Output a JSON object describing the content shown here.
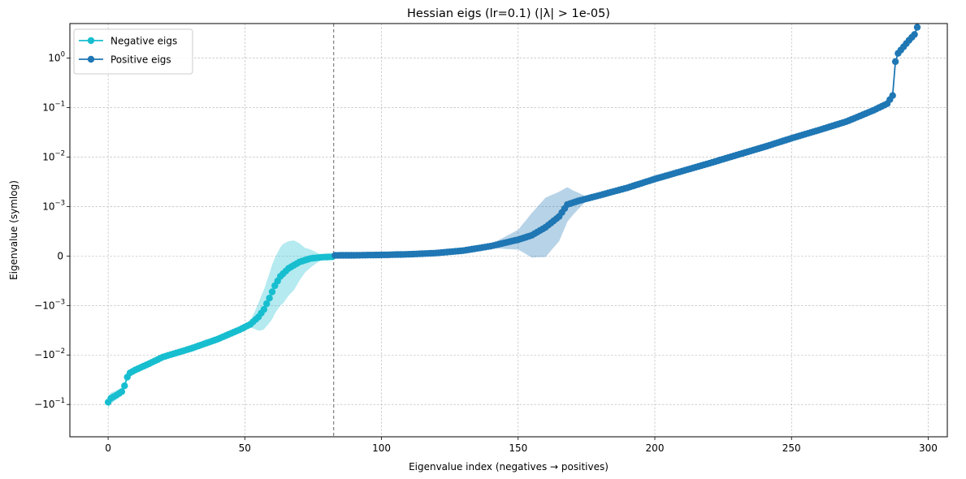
{
  "chart_data": {
    "type": "line",
    "title": "Hessian eigs (lr=0.1) (|λ| > 1e-05)",
    "xlabel": "Eigenvalue index (negatives → positives)",
    "ylabel": "Eigenvalue (symlog)",
    "y_scale": "symlog",
    "linthresh": 0.001,
    "xlim": [
      -14,
      307
    ],
    "ylim": [
      -0.45,
      5.0
    ],
    "xticks": [
      0,
      50,
      100,
      150,
      200,
      250,
      300
    ],
    "xtick_labels": [
      "0",
      "50",
      "100",
      "150",
      "200",
      "250",
      "300"
    ],
    "yticks": [
      -0.1,
      -0.01,
      -0.001,
      0,
      0.001,
      0.01,
      0.1,
      1
    ],
    "ytick_labels": [
      {
        "base": "−10",
        "exp": "−1"
      },
      {
        "base": "−10",
        "exp": "−2"
      },
      {
        "base": "−10",
        "exp": "−3"
      },
      {
        "base": "0",
        "exp": ""
      },
      {
        "base": "10",
        "exp": "−3"
      },
      {
        "base": "10",
        "exp": "−2"
      },
      {
        "base": "10",
        "exp": "−1"
      },
      {
        "base": "10",
        "exp": "0"
      }
    ],
    "grid": true,
    "legend_position": "upper-left",
    "divider_x": 82.5,
    "series": [
      {
        "name": "Negative eigs",
        "color": "#17becf",
        "x_start": 0,
        "x_end": 82,
        "anchors": [
          [
            0,
            -0.09
          ],
          [
            1,
            -0.075
          ],
          [
            3,
            -0.065
          ],
          [
            5,
            -0.055
          ],
          [
            6,
            -0.042
          ],
          [
            7,
            -0.028
          ],
          [
            8,
            -0.023
          ],
          [
            10,
            -0.02
          ],
          [
            15,
            -0.015
          ],
          [
            20,
            -0.011
          ],
          [
            30,
            -0.0075
          ],
          [
            40,
            -0.0048
          ],
          [
            48,
            -0.0031
          ],
          [
            52,
            -0.0024
          ],
          [
            55,
            -0.0017
          ],
          [
            57,
            -0.0012
          ],
          [
            59,
            -0.00085
          ],
          [
            61,
            -0.0006
          ],
          [
            63,
            -0.00041
          ],
          [
            66,
            -0.00025
          ],
          [
            70,
            -0.00012
          ],
          [
            74,
            -5e-05
          ],
          [
            78,
            -2.5e-05
          ],
          [
            82,
            -1.5e-05
          ]
        ],
        "band": [
          [
            0,
            0.12
          ],
          [
            8,
            0.05
          ],
          [
            30,
            0.05
          ],
          [
            45,
            0.06
          ],
          [
            52,
            0.06
          ],
          [
            56,
            0.35
          ],
          [
            60,
            0.55
          ],
          [
            64,
            0.6
          ],
          [
            68,
            0.5
          ],
          [
            72,
            0.25
          ],
          [
            78,
            0.05
          ],
          [
            82,
            0.02
          ]
        ]
      },
      {
        "name": "Positive eigs",
        "color": "#1f77b4",
        "x_start": 83,
        "x_end": 296,
        "anchors": [
          [
            83,
            1.3e-05
          ],
          [
            90,
            1.5e-05
          ],
          [
            100,
            2.2e-05
          ],
          [
            110,
            3.5e-05
          ],
          [
            120,
            6e-05
          ],
          [
            130,
            0.00011
          ],
          [
            140,
            0.0002
          ],
          [
            150,
            0.00033
          ],
          [
            155,
            0.00042
          ],
          [
            160,
            0.00058
          ],
          [
            165,
            0.0008
          ],
          [
            168,
            0.0011
          ],
          [
            172,
            0.0013
          ],
          [
            180,
            0.0017
          ],
          [
            190,
            0.0024
          ],
          [
            200,
            0.0036
          ],
          [
            210,
            0.0052
          ],
          [
            220,
            0.0075
          ],
          [
            230,
            0.011
          ],
          [
            240,
            0.016
          ],
          [
            250,
            0.024
          ],
          [
            260,
            0.035
          ],
          [
            270,
            0.052
          ],
          [
            280,
            0.088
          ],
          [
            285,
            0.12
          ],
          [
            287,
            0.175
          ],
          [
            288,
            0.85
          ],
          [
            289,
            1.25
          ],
          [
            291,
            1.7
          ],
          [
            293,
            2.3
          ],
          [
            295,
            3.0
          ],
          [
            296,
            4.2
          ]
        ],
        "band": [
          [
            83,
            0.02
          ],
          [
            140,
            0.04
          ],
          [
            150,
            0.2
          ],
          [
            155,
            0.45
          ],
          [
            160,
            0.6
          ],
          [
            165,
            0.5
          ],
          [
            170,
            0.25
          ],
          [
            175,
            0.04
          ],
          [
            296,
            0.02
          ]
        ]
      }
    ]
  }
}
